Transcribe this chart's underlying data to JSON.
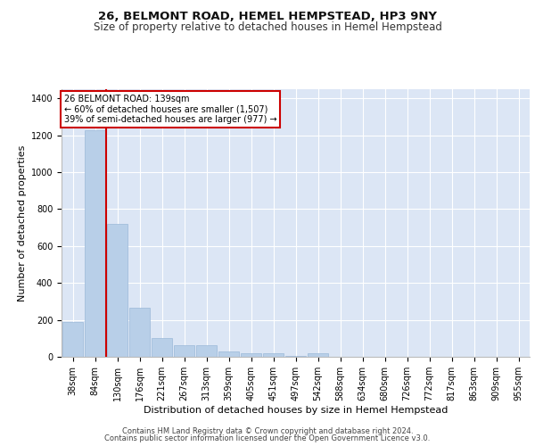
{
  "title1": "26, BELMONT ROAD, HEMEL HEMPSTEAD, HP3 9NY",
  "title2": "Size of property relative to detached houses in Hemel Hempstead",
  "xlabel": "Distribution of detached houses by size in Hemel Hempstead",
  "ylabel": "Number of detached properties",
  "categories": [
    "38sqm",
    "84sqm",
    "130sqm",
    "176sqm",
    "221sqm",
    "267sqm",
    "313sqm",
    "359sqm",
    "405sqm",
    "451sqm",
    "497sqm",
    "542sqm",
    "588sqm",
    "634sqm",
    "680sqm",
    "726sqm",
    "772sqm",
    "817sqm",
    "863sqm",
    "909sqm",
    "955sqm"
  ],
  "values": [
    190,
    1230,
    720,
    265,
    100,
    65,
    65,
    30,
    20,
    20,
    5,
    20,
    0,
    0,
    0,
    0,
    0,
    0,
    0,
    0,
    0
  ],
  "bar_color": "#b8cfe8",
  "bar_edge_color": "#9ab8d8",
  "background_color": "#dce6f5",
  "grid_color": "#ffffff",
  "annotation_text": "26 BELMONT ROAD: 139sqm\n← 60% of detached houses are smaller (1,507)\n39% of semi-detached houses are larger (977) →",
  "vline_color": "#cc0000",
  "annotation_box_color": "#ffffff",
  "annotation_box_edge": "#cc0000",
  "ylim": [
    0,
    1450
  ],
  "yticks": [
    0,
    200,
    400,
    600,
    800,
    1000,
    1200,
    1400
  ],
  "footer1": "Contains HM Land Registry data © Crown copyright and database right 2024.",
  "footer2": "Contains public sector information licensed under the Open Government Licence v3.0.",
  "title1_fontsize": 9.5,
  "title2_fontsize": 8.5,
  "xlabel_fontsize": 8,
  "ylabel_fontsize": 8,
  "annotation_fontsize": 7,
  "tick_fontsize": 7,
  "footer_fontsize": 6
}
